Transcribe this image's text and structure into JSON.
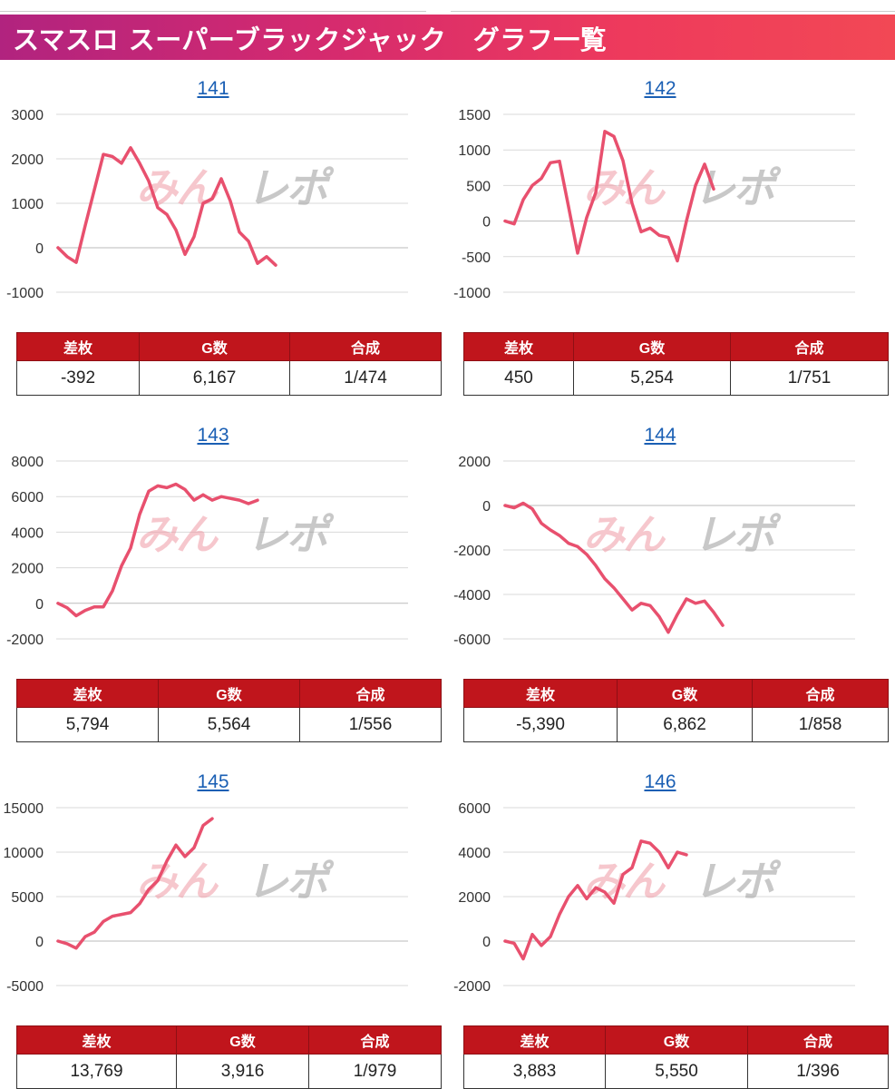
{
  "header": {
    "title": "スマスロ スーパーブラックジャック　グラフ一覧"
  },
  "colors": {
    "banner_start": "#b1237f",
    "banner_end": "#f24855",
    "line": "#e8506e",
    "table_header": "#c0151c",
    "link": "#1a5fb4",
    "grid": "#d9d9d9",
    "zero_line": "#bbbbbb"
  },
  "watermark": {
    "left_text": "みん",
    "right_text": "レポ"
  },
  "table_headers": {
    "diff": "差枚",
    "games": "G数",
    "combined": "合成"
  },
  "charts": [
    {
      "id": "141",
      "stats": {
        "diff": "-392",
        "games": "6,167",
        "combined": "1/474"
      },
      "chart_data": {
        "type": "line",
        "title": "141",
        "ylim": [
          -1000,
          3000
        ],
        "yticks": [
          "3000",
          "2000",
          "1000",
          "0",
          "-1000"
        ],
        "series": [
          {
            "values": [
              0,
              -200,
              -330,
              500,
              1300,
              2100,
              2050,
              1900,
              2250,
              1900,
              1500,
              900,
              750,
              400,
              -150,
              250,
              1000,
              1100,
              1550,
              1050,
              350,
              150,
              -350,
              -200,
              -392
            ]
          }
        ]
      }
    },
    {
      "id": "142",
      "stats": {
        "diff": "450",
        "games": "5,254",
        "combined": "1/751"
      },
      "chart_data": {
        "type": "line",
        "title": "142",
        "ylim": [
          -1000,
          1500
        ],
        "yticks": [
          "1500",
          "1000",
          "500",
          "0",
          "-500",
          "-1000"
        ],
        "series": [
          {
            "values": [
              0,
              -40,
              300,
              500,
              600,
              820,
              840,
              200,
              -450,
              50,
              400,
              1260,
              1190,
              850,
              250,
              -150,
              -100,
              -200,
              -230,
              -560,
              0,
              500,
              800,
              450
            ]
          }
        ]
      }
    },
    {
      "id": "143",
      "stats": {
        "diff": "5,794",
        "games": "5,564",
        "combined": "1/556"
      },
      "chart_data": {
        "type": "line",
        "title": "143",
        "ylim": [
          -2000,
          8000
        ],
        "yticks": [
          "8000",
          "6000",
          "4000",
          "2000",
          "0",
          "-2000"
        ],
        "series": [
          {
            "values": [
              0,
              -250,
              -700,
              -400,
              -200,
              -200,
              700,
              2100,
              3100,
              5000,
              6300,
              6600,
              6500,
              6700,
              6400,
              5800,
              6100,
              5800,
              6000,
              5900,
              5800,
              5600,
              5794
            ]
          }
        ]
      }
    },
    {
      "id": "144",
      "stats": {
        "diff": "-5,390",
        "games": "6,862",
        "combined": "1/858"
      },
      "chart_data": {
        "type": "line",
        "title": "144",
        "ylim": [
          -6000,
          2000
        ],
        "yticks": [
          "2000",
          "0",
          "-2000",
          "-4000",
          "-6000"
        ],
        "series": [
          {
            "values": [
              0,
              -100,
              100,
              -150,
              -800,
              -1100,
              -1350,
              -1700,
              -1850,
              -2200,
              -2700,
              -3300,
              -3700,
              -4200,
              -4700,
              -4400,
              -4500,
              -5000,
              -5700,
              -4900,
              -4200,
              -4400,
              -4300,
              -4800,
              -5390
            ]
          }
        ]
      }
    },
    {
      "id": "145",
      "stats": {
        "diff": "13,769",
        "games": "3,916",
        "combined": "1/979"
      },
      "chart_data": {
        "type": "line",
        "title": "145",
        "ylim": [
          -5000,
          15000
        ],
        "yticks": [
          "15000",
          "10000",
          "5000",
          "0",
          "-5000"
        ],
        "series": [
          {
            "values": [
              0,
              -300,
              -800,
              500,
              1000,
              2200,
              2800,
              3000,
              3200,
              4200,
              5800,
              6800,
              9000,
              10800,
              9500,
              10500,
              13000,
              13769
            ]
          }
        ]
      }
    },
    {
      "id": "146",
      "stats": {
        "diff": "3,883",
        "games": "5,550",
        "combined": "1/396"
      },
      "chart_data": {
        "type": "line",
        "title": "146",
        "ylim": [
          -2000,
          6000
        ],
        "yticks": [
          "6000",
          "4000",
          "2000",
          "0",
          "-2000"
        ],
        "series": [
          {
            "values": [
              0,
              -100,
              -800,
              300,
              -200,
              200,
              1200,
              2000,
              2500,
              1900,
              2400,
              2200,
              1700,
              3000,
              3300,
              4500,
              4400,
              4000,
              3300,
              4000,
              3883
            ]
          }
        ]
      }
    }
  ]
}
